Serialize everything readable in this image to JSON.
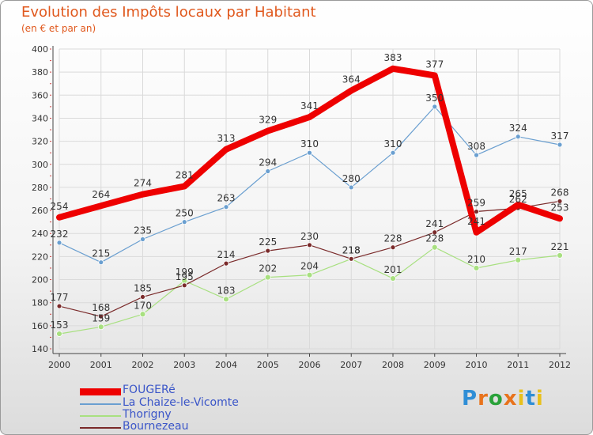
{
  "title": "Evolution des Impôts locaux par Habitant",
  "subtitle": "(en € et par an)",
  "logo": {
    "text": "Proxiti",
    "letters": [
      "P",
      "r",
      "o",
      "x",
      "i",
      "t",
      "i"
    ],
    "colors": [
      "#2f8ed6",
      "#e8731c",
      "#2aa23a",
      "#e8731c",
      "#e8c01c",
      "#2f8ed6",
      "#e8c01c"
    ]
  },
  "chart_data": {
    "type": "line",
    "title": "Evolution des Impôts locaux par Habitant",
    "ylabel": "(en € et par an)",
    "xlabel": "",
    "ylim": [
      140,
      400
    ],
    "yticks": [
      140,
      160,
      180,
      200,
      220,
      240,
      260,
      280,
      300,
      320,
      340,
      360,
      380,
      400
    ],
    "x": [
      "2000",
      "2001",
      "2002",
      "2003",
      "2004",
      "2005",
      "2006",
      "2007",
      "2008",
      "2009",
      "2010",
      "2011",
      "2012"
    ],
    "series": [
      {
        "name": "FOUGERé",
        "color": "#ee0000",
        "values": [
          254,
          264,
          274,
          281,
          313,
          329,
          341,
          364,
          383,
          377,
          241,
          265,
          253
        ]
      },
      {
        "name": "La Chaize-le-Vicomte",
        "color": "#6a9fd0",
        "values": [
          232,
          215,
          235,
          250,
          263,
          294,
          310,
          280,
          310,
          350,
          308,
          324,
          317
        ]
      },
      {
        "name": "Thorigny",
        "color": "#a8e080",
        "values": [
          153,
          159,
          170,
          199,
          183,
          202,
          204,
          218,
          201,
          228,
          210,
          217,
          221
        ]
      },
      {
        "name": "Bournezeau",
        "color": "#7a2a2a",
        "values": [
          177,
          168,
          185,
          195,
          214,
          225,
          230,
          218,
          228,
          241,
          259,
          262,
          268
        ]
      }
    ],
    "labels": [
      [
        "254",
        "264",
        "274",
        "281",
        "313",
        "329",
        "341",
        "364",
        "383",
        "377",
        "241",
        "265",
        "253"
      ],
      [
        "232",
        "215",
        "235",
        "250",
        "263",
        "294",
        "310",
        "280",
        "310",
        "350",
        "308",
        "324",
        "317"
      ],
      [
        "153",
        "159",
        "170",
        "199",
        "183",
        "202",
        "204",
        "218",
        "201",
        "228",
        "210",
        "217",
        "221"
      ],
      [
        "177",
        "168",
        "185",
        "195",
        "214",
        "225",
        "230",
        "218",
        "228",
        "241",
        "259",
        "262",
        "268"
      ]
    ]
  }
}
